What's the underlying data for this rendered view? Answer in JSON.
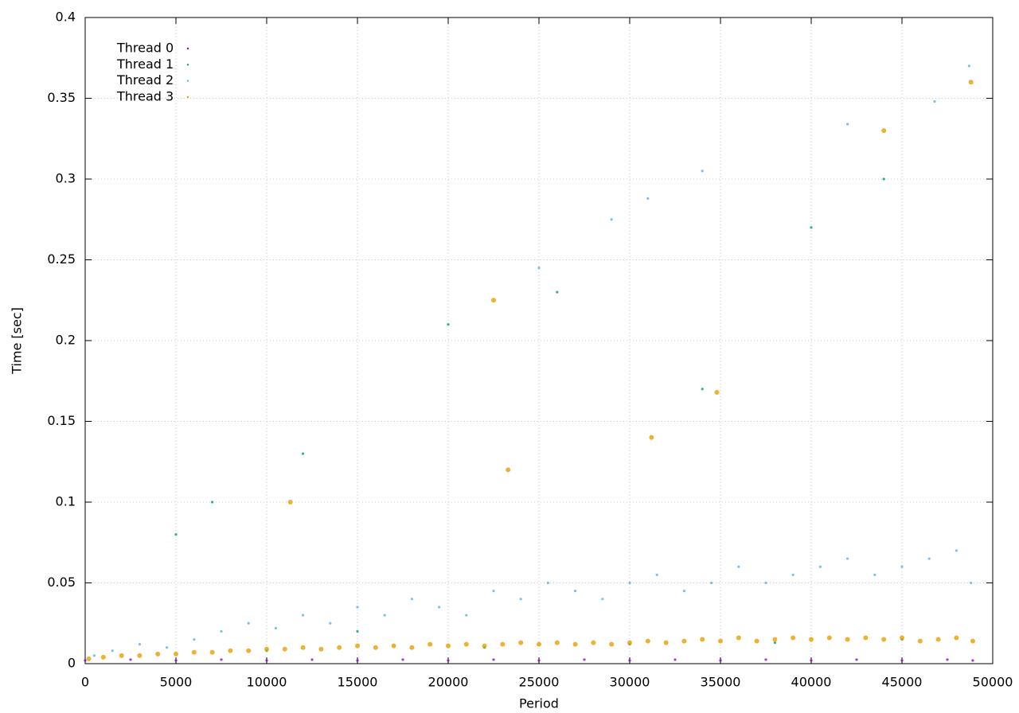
{
  "chart_data": {
    "type": "scatter",
    "xlabel": "Period",
    "ylabel": "Time [sec]",
    "xlim": [
      0,
      50000
    ],
    "xticks": [
      0,
      5000,
      10000,
      15000,
      20000,
      25000,
      30000,
      35000,
      40000,
      45000,
      50000
    ],
    "ylim": [
      0,
      0.4
    ],
    "yticks": [
      0,
      0.05,
      0.1,
      0.15,
      0.2,
      0.25,
      0.3,
      0.35,
      0.4
    ],
    "grid": true,
    "legend": "top-left",
    "series": [
      {
        "name": "Thread 0",
        "color": "#9400d3",
        "x": [
          0,
          2500,
          5000,
          7500,
          10000,
          12500,
          15000,
          17500,
          20000,
          22500,
          25000,
          27500,
          30000,
          32500,
          35000,
          37500,
          40000,
          42500,
          45000,
          47500,
          48900
        ],
        "y": [
          0.002,
          0.0025,
          0.002,
          0.0025,
          0.002,
          0.0025,
          0.002,
          0.0025,
          0.002,
          0.0025,
          0.002,
          0.0025,
          0.002,
          0.0025,
          0.002,
          0.0025,
          0.002,
          0.0025,
          0.002,
          0.0025,
          0.002
        ]
      },
      {
        "name": "Thread 1",
        "color": "#009e73",
        "x": [
          5000,
          7000,
          10000,
          12000,
          15000,
          20000,
          22000,
          26000,
          30000,
          34000,
          38000,
          40000,
          44000,
          45000
        ],
        "y": [
          0.08,
          0.1,
          0.008,
          0.13,
          0.02,
          0.21,
          0.01,
          0.23,
          0.012,
          0.17,
          0.013,
          0.27,
          0.3,
          0.015
        ]
      },
      {
        "name": "Thread 2",
        "color": "#56b4e9",
        "x": [
          500,
          1500,
          3000,
          4500,
          6000,
          7500,
          9000,
          10500,
          12000,
          13500,
          15000,
          16500,
          18000,
          19500,
          21000,
          22500,
          24000,
          25500,
          27000,
          28500,
          30000,
          31500,
          33000,
          34500,
          36000,
          37500,
          39000,
          40500,
          42000,
          43500,
          45000,
          46500,
          48000,
          48800,
          25000,
          29000,
          31000,
          34000,
          42000,
          46800,
          48700
        ],
        "y": [
          0.005,
          0.008,
          0.012,
          0.01,
          0.015,
          0.02,
          0.025,
          0.022,
          0.03,
          0.025,
          0.035,
          0.03,
          0.04,
          0.035,
          0.03,
          0.045,
          0.04,
          0.05,
          0.045,
          0.04,
          0.05,
          0.055,
          0.045,
          0.05,
          0.06,
          0.05,
          0.055,
          0.06,
          0.065,
          0.055,
          0.06,
          0.065,
          0.07,
          0.05,
          0.245,
          0.275,
          0.288,
          0.305,
          0.334,
          0.348,
          0.37
        ]
      },
      {
        "name": "Thread 3",
        "color": "#e69f00",
        "x": [
          200,
          1000,
          2000,
          3000,
          4000,
          5000,
          6000,
          7000,
          8000,
          9000,
          10000,
          11000,
          12000,
          13000,
          14000,
          15000,
          16000,
          17000,
          18000,
          19000,
          20000,
          21000,
          22000,
          23000,
          24000,
          25000,
          26000,
          27000,
          28000,
          29000,
          30000,
          31000,
          32000,
          33000,
          34000,
          35000,
          36000,
          37000,
          38000,
          39000,
          40000,
          41000,
          42000,
          43000,
          44000,
          45000,
          46000,
          47000,
          48000,
          48900,
          11300,
          22500,
          23300,
          31200,
          34800,
          44000,
          48800
        ],
        "y": [
          0.003,
          0.004,
          0.005,
          0.005,
          0.006,
          0.006,
          0.007,
          0.007,
          0.008,
          0.008,
          0.009,
          0.009,
          0.01,
          0.009,
          0.01,
          0.011,
          0.01,
          0.011,
          0.01,
          0.012,
          0.011,
          0.012,
          0.011,
          0.012,
          0.013,
          0.012,
          0.013,
          0.012,
          0.013,
          0.012,
          0.013,
          0.014,
          0.013,
          0.014,
          0.015,
          0.014,
          0.016,
          0.014,
          0.015,
          0.016,
          0.015,
          0.016,
          0.015,
          0.016,
          0.015,
          0.016,
          0.014,
          0.015,
          0.016,
          0.014,
          0.1,
          0.225,
          0.12,
          0.14,
          0.168,
          0.33,
          0.36
        ]
      }
    ]
  }
}
